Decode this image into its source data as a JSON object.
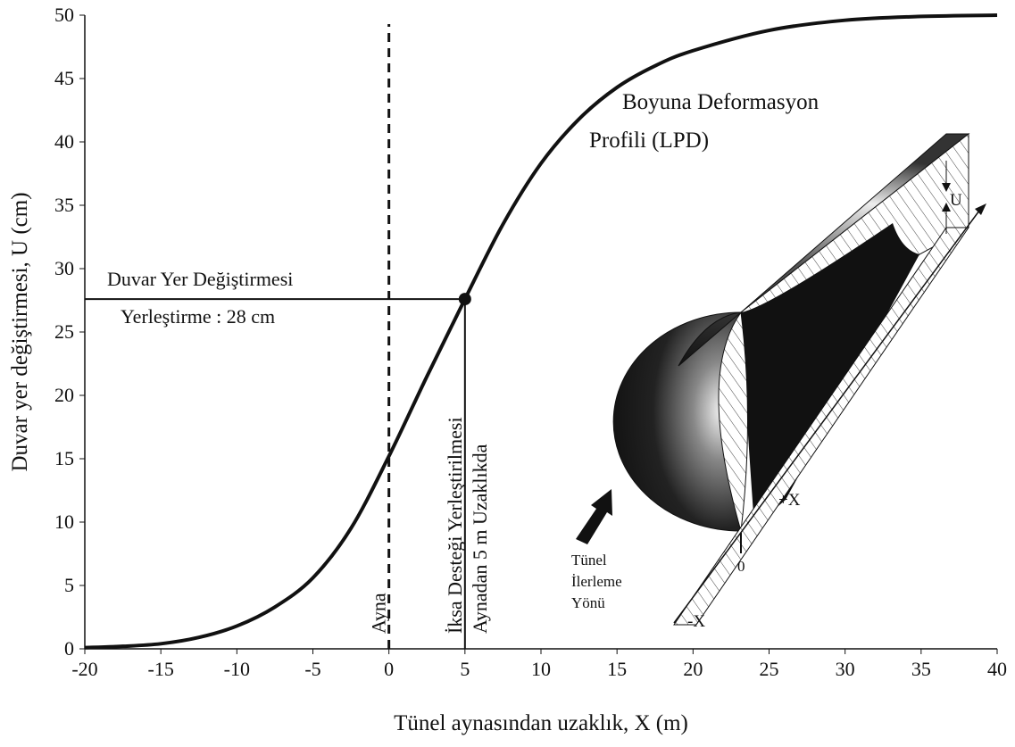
{
  "chart_data": {
    "type": "line",
    "x_label": "Tünel aynasından uzaklık, X (m)",
    "y_label": "Duvar yer değiştirmesi, U (cm)",
    "x": [
      -20,
      -17.5,
      -15,
      -12.5,
      -10,
      -7.5,
      -5,
      -2.5,
      0,
      2.5,
      5,
      7.5,
      10,
      12.5,
      15,
      17.5,
      20,
      25,
      30,
      35,
      40
    ],
    "series": [
      {
        "name": "Boyuna Deformasyon Profili (LPD)",
        "color": "#111111",
        "values": [
          0.1,
          0.2,
          0.4,
          0.9,
          1.8,
          3.3,
          5.6,
          9.5,
          15.2,
          21.5,
          27.6,
          33.5,
          38.3,
          41.8,
          44.3,
          46,
          47.2,
          48.8,
          49.6,
          49.9,
          50
        ]
      }
    ],
    "xlim": [
      -20,
      40
    ],
    "xticks": [
      -20,
      -15,
      -10,
      -5,
      0,
      5,
      10,
      15,
      20,
      25,
      30,
      35,
      40
    ],
    "ylim": [
      0,
      50
    ],
    "yticks": [
      0,
      5,
      10,
      15,
      20,
      25,
      30,
      35,
      40,
      45,
      50
    ],
    "grid": false,
    "markers": [
      {
        "x": 5,
        "y": 27.6
      }
    ],
    "vlines": [
      {
        "x": 0,
        "style": "dashed",
        "label": "Ayna"
      },
      {
        "x": 5,
        "style": "solid",
        "label": "İksa Desteği Yerleştirilmesi",
        "label2": "Aynadan 5 m Uzaklıkda"
      }
    ],
    "annotations": [
      "Boyuna Deformasyon",
      "Profili (LPD)",
      "Duvar Yer Değiştirmesi",
      "Yerleştirme : 28 cm"
    ],
    "illustration_labels": [
      "U",
      "+X",
      "0",
      "-X",
      "Tünel",
      "İlerleme",
      "Yönü"
    ]
  }
}
